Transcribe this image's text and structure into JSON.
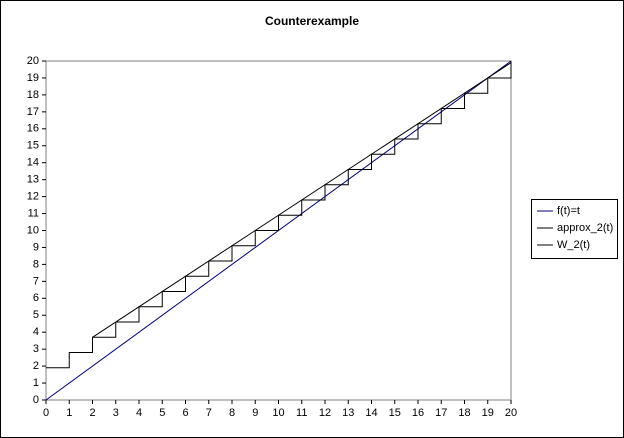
{
  "chart_data": {
    "type": "line",
    "title": "Counterexample",
    "xlim": [
      0,
      20
    ],
    "ylim": [
      0,
      20
    ],
    "xticks": [
      0,
      1,
      2,
      3,
      4,
      5,
      6,
      7,
      8,
      9,
      10,
      11,
      12,
      13,
      14,
      15,
      16,
      17,
      18,
      19,
      20
    ],
    "yticks": [
      0,
      1,
      2,
      3,
      4,
      5,
      6,
      7,
      8,
      9,
      10,
      11,
      12,
      13,
      14,
      15,
      16,
      17,
      18,
      19,
      20
    ],
    "grid": false,
    "legend": "right",
    "series": [
      {
        "name": "f(t)=t",
        "color": "#000080",
        "x": [
          0,
          20
        ],
        "values": [
          0,
          20
        ]
      },
      {
        "name": "approx_2(t)",
        "color": "#000000",
        "x": [
          0,
          1,
          1,
          2,
          2,
          3,
          3,
          4,
          4,
          5,
          5,
          6,
          6,
          7,
          7,
          8,
          8,
          9,
          9,
          10,
          10,
          11,
          11,
          12,
          12,
          13,
          13,
          14,
          14,
          15,
          15,
          16,
          16,
          17,
          17,
          18,
          18,
          19,
          19,
          20,
          20
        ],
        "values": [
          1.9,
          1.9,
          2.8,
          2.8,
          3.7,
          3.7,
          4.6,
          4.6,
          5.5,
          5.5,
          6.4,
          6.4,
          7.3,
          7.3,
          8.2,
          8.2,
          9.1,
          9.1,
          10,
          10,
          10.9,
          10.9,
          11.8,
          11.8,
          12.7,
          12.7,
          13.6,
          13.6,
          14.5,
          14.5,
          15.4,
          15.4,
          16.3,
          16.3,
          17.2,
          17.2,
          18.1,
          18.1,
          19,
          19,
          20
        ]
      },
      {
        "name": "W_2(t)",
        "color": "#000000",
        "x": [
          2,
          20
        ],
        "values": [
          3.7,
          19.9
        ]
      }
    ]
  }
}
